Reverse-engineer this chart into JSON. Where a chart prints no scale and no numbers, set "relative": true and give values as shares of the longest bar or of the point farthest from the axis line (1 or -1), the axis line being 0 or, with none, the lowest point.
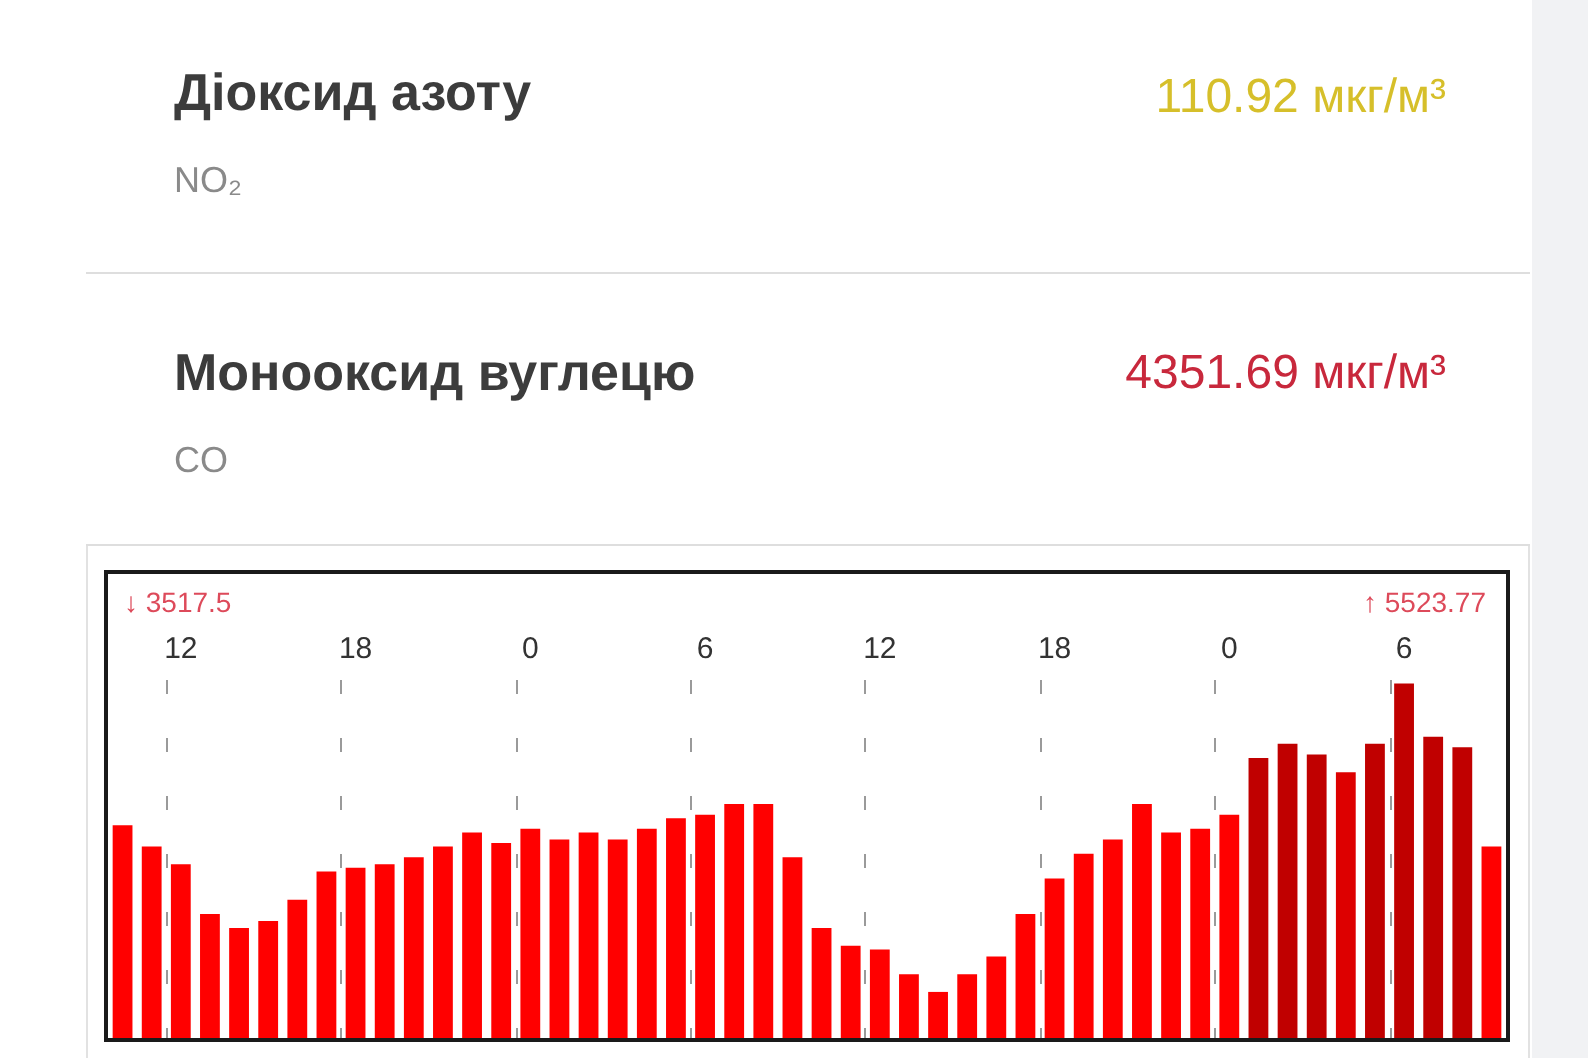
{
  "chart_data": [
    {
      "type": "other",
      "annotations": [
        "Діоксид азоту",
        "NO₂",
        "110.92 мкг/м³",
        "Монооксид вуглецю",
        "CO",
        "4351.69 мкг/м³"
      ]
    },
    {
      "type": "bar",
      "relative": true,
      "categories": [
        null,
        null,
        "12",
        null,
        null,
        null,
        null,
        null,
        "18",
        null,
        null,
        null,
        null,
        null,
        "0",
        null,
        null,
        null,
        null,
        null,
        "6",
        null,
        null,
        null,
        null,
        null,
        "12",
        null,
        null,
        null,
        null,
        null,
        "18",
        null,
        null,
        null,
        null,
        null,
        "0",
        null,
        null,
        null,
        null,
        null,
        "6",
        null,
        null,
        null
      ],
      "values": [
        0.6,
        0.54,
        0.49,
        0.35,
        0.31,
        0.33,
        0.39,
        0.47,
        0.48,
        0.49,
        0.51,
        0.54,
        0.58,
        0.55,
        0.59,
        0.56,
        0.58,
        0.56,
        0.59,
        0.62,
        0.63,
        0.66,
        0.66,
        0.51,
        0.31,
        0.26,
        0.25,
        0.18,
        0.13,
        0.18,
        0.23,
        0.35,
        0.45,
        0.52,
        0.56,
        0.66,
        0.58,
        0.59,
        0.63,
        0.79,
        0.83,
        0.8,
        0.75,
        0.83,
        1,
        0.85,
        0.82,
        0.54
      ],
      "colors": [
        "#ff0000",
        "#ff0000",
        "#ff0000",
        "#ff0000",
        "#ff0000",
        "#ff0000",
        "#ff0000",
        "#ff0000",
        "#ff0000",
        "#ff0000",
        "#ff0000",
        "#ff0000",
        "#ff0000",
        "#ff0000",
        "#ff0000",
        "#ff0000",
        "#ff0000",
        "#ff0000",
        "#ff0000",
        "#ff0000",
        "#ff0000",
        "#ff0000",
        "#ff0000",
        "#ff0000",
        "#ff0000",
        "#ff0000",
        "#ff0000",
        "#ff0000",
        "#ff0000",
        "#ff0000",
        "#ff0000",
        "#ff0000",
        "#ff0000",
        "#ff0000",
        "#ff0000",
        "#ff0000",
        "#ff0000",
        "#ff0000",
        "#ff0000",
        "#c00000",
        "#c00000",
        "#c00000",
        "#dd0000",
        "#c00000",
        "#c00000",
        "#c00000",
        "#c00000",
        "#ff0000"
      ],
      "grid": "x",
      "annotations": [
        "↓ 3517.5",
        "↑ 5523.77"
      ]
    }
  ]
}
